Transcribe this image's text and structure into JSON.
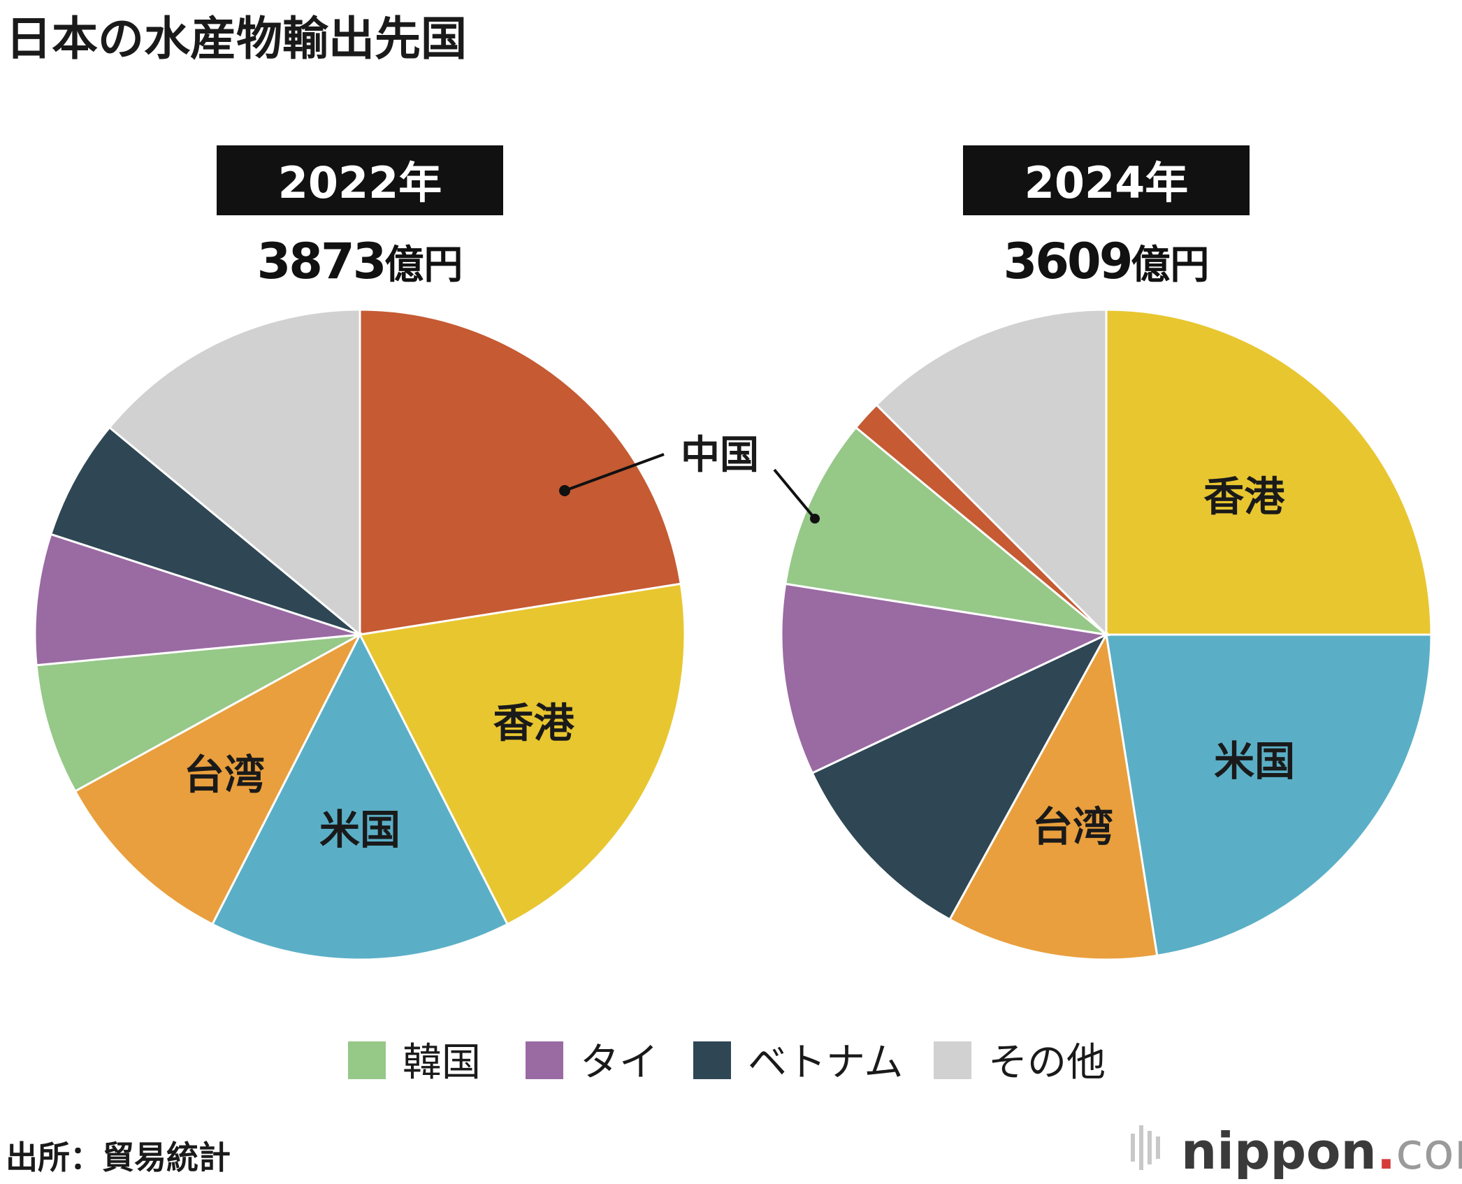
{
  "title": "日本の水産物輸出先国",
  "source": "出所：貿易統計",
  "logo": {
    "name": "nippon",
    "dot": ".",
    "tld": "com"
  },
  "colors": {
    "中国": "#c55a33",
    "香港": "#e8c630",
    "米国": "#5aafc6",
    "台湾": "#e99f3d",
    "韓国": "#96c888",
    "タイ": "#9a6aa3",
    "ベトナム": "#2f4654",
    "その他": "#d1d1d1"
  },
  "legend": [
    "韓国",
    "タイ",
    "ベトナム",
    "その他"
  ],
  "chart_data": [
    {
      "type": "pie",
      "year": "2022年",
      "total": "3873",
      "unit": "億円",
      "unit_value": "percent",
      "slices": [
        {
          "name": "中国",
          "value": 22.5,
          "label": "中国",
          "label_mode": "callout"
        },
        {
          "name": "香港",
          "value": 20.0,
          "label": "香港",
          "label_mode": "inside"
        },
        {
          "name": "米国",
          "value": 15.0,
          "label": "米国",
          "label_mode": "inside"
        },
        {
          "name": "台湾",
          "value": 9.5,
          "label": "台湾",
          "label_mode": "inside"
        },
        {
          "name": "韓国",
          "value": 6.5,
          "label": "",
          "label_mode": "none"
        },
        {
          "name": "タイ",
          "value": 6.5,
          "label": "",
          "label_mode": "none"
        },
        {
          "name": "ベトナム",
          "value": 6.0,
          "label": "",
          "label_mode": "none"
        },
        {
          "name": "その他",
          "value": 14.0,
          "label": "",
          "label_mode": "none"
        }
      ]
    },
    {
      "type": "pie",
      "year": "2024年",
      "total": "3609",
      "unit": "億円",
      "unit_value": "percent",
      "slices": [
        {
          "name": "香港",
          "value": 25.0,
          "label": "香港",
          "label_mode": "inside"
        },
        {
          "name": "米国",
          "value": 22.5,
          "label": "米国",
          "label_mode": "inside"
        },
        {
          "name": "台湾",
          "value": 10.5,
          "label": "台湾",
          "label_mode": "inside"
        },
        {
          "name": "ベトナム",
          "value": 10.0,
          "label": "",
          "label_mode": "none"
        },
        {
          "name": "タイ",
          "value": 9.5,
          "label": "",
          "label_mode": "none"
        },
        {
          "name": "韓国",
          "value": 8.5,
          "label": "",
          "label_mode": "none"
        },
        {
          "name": "中国",
          "value": 1.5,
          "label": "",
          "label_mode": "none"
        },
        {
          "name": "その他",
          "value": 12.5,
          "label": "",
          "label_mode": "none"
        }
      ]
    }
  ]
}
